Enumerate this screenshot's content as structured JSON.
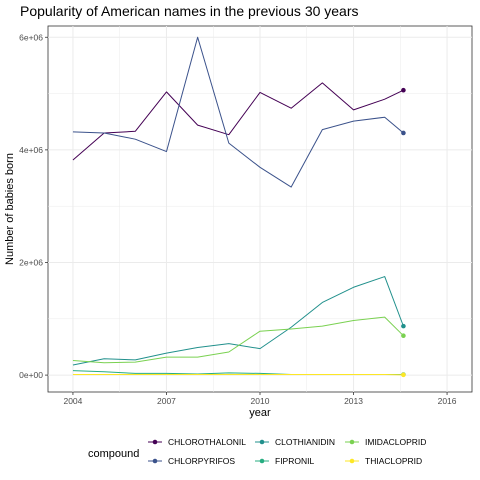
{
  "chart_data": {
    "type": "line",
    "title": "Popularity of American names in the previous 30 years",
    "xlabel": "year",
    "ylabel": "Number of babies born",
    "xlim": [
      2003.2,
      2016.8
    ],
    "ylim": [
      -300000,
      6200000
    ],
    "x_ticks": [
      2004,
      2007,
      2010,
      2013,
      2016
    ],
    "y_ticks": [
      0,
      2000000,
      4000000,
      6000000
    ],
    "y_tick_labels": [
      "0e+00",
      "2e+06",
      "4e+06",
      "6e+06"
    ],
    "grid": true,
    "legend_title": "compound",
    "legend_position": "bottom",
    "x": [
      2004,
      2005,
      2006,
      2007,
      2008,
      2009,
      2010,
      2011,
      2012,
      2013,
      2014
    ],
    "end_x": 2014.6,
    "series": [
      {
        "name": "CHLOROTHALONIL",
        "color": "#440154",
        "values": [
          3820000,
          4300000,
          4330000,
          5030000,
          4440000,
          4270000,
          5020000,
          4740000,
          5190000,
          4710000,
          4900000
        ],
        "end_value": 5060000
      },
      {
        "name": "CHLORPYRIFOS",
        "color": "#3b528b",
        "values": [
          4320000,
          4300000,
          4190000,
          3970000,
          6000000,
          4120000,
          3690000,
          3340000,
          4360000,
          4510000,
          4580000
        ],
        "end_value": 4300000
      },
      {
        "name": "CLOTHIANIDIN",
        "color": "#21908c",
        "values": [
          180000,
          290000,
          270000,
          390000,
          490000,
          560000,
          470000,
          850000,
          1290000,
          1560000,
          1750000
        ],
        "end_value": 870000
      },
      {
        "name": "FIPRONIL",
        "color": "#27ad81",
        "values": [
          80000,
          60000,
          30000,
          30000,
          20000,
          40000,
          30000,
          10000,
          10000,
          10000,
          10000
        ],
        "end_value": 10000
      },
      {
        "name": "IMIDACLOPRID",
        "color": "#7ad151",
        "values": [
          260000,
          220000,
          230000,
          320000,
          320000,
          410000,
          780000,
          820000,
          870000,
          970000,
          1030000
        ],
        "end_value": 700000
      },
      {
        "name": "THIACLOPRID",
        "color": "#fde725",
        "values": [
          10000,
          10000,
          10000,
          10000,
          10000,
          10000,
          10000,
          10000,
          10000,
          10000,
          10000
        ],
        "end_value": 5000
      }
    ]
  }
}
